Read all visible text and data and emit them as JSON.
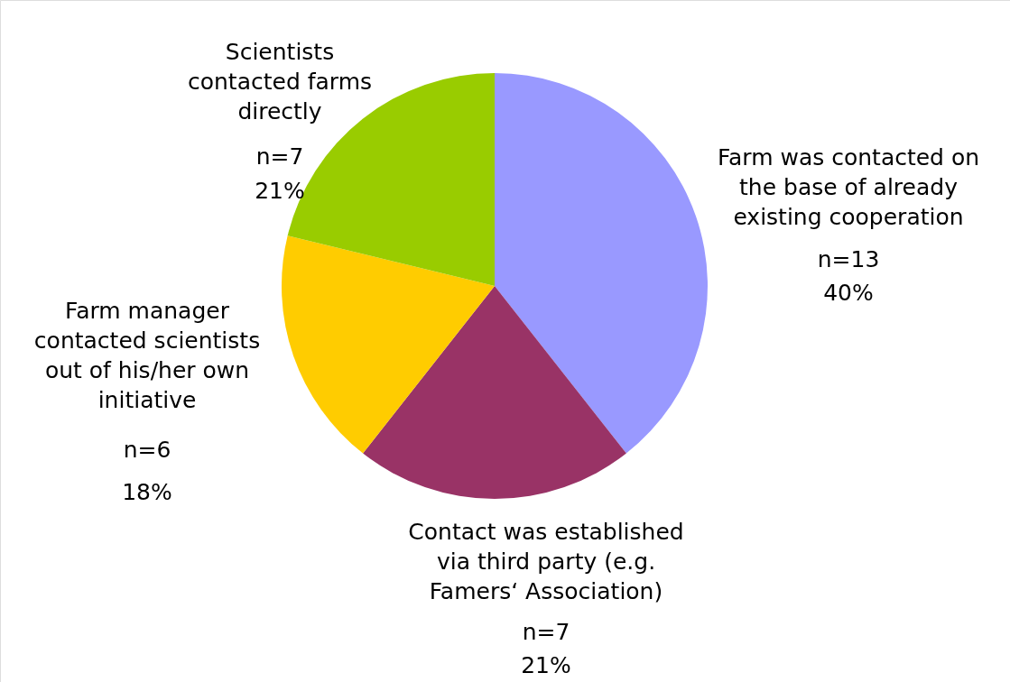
{
  "chart_data": {
    "type": "pie",
    "categories": [
      "Farm was contacted on the base of already existing cooperation",
      "Contact was established via third party (e.g. Famers‘ Association)",
      "Farm manager contacted scientists out of his/her own initiative",
      "Scientists contacted farms directly"
    ],
    "values": [
      13,
      7,
      6,
      7
    ],
    "value_labels": [
      "n=13\n40%",
      "n=7\n21%",
      "n=6\n18%",
      "n=7\n21%"
    ],
    "colors": [
      "#9999ff",
      "#993366",
      "#ffcc00",
      "#99cc00"
    ]
  }
}
